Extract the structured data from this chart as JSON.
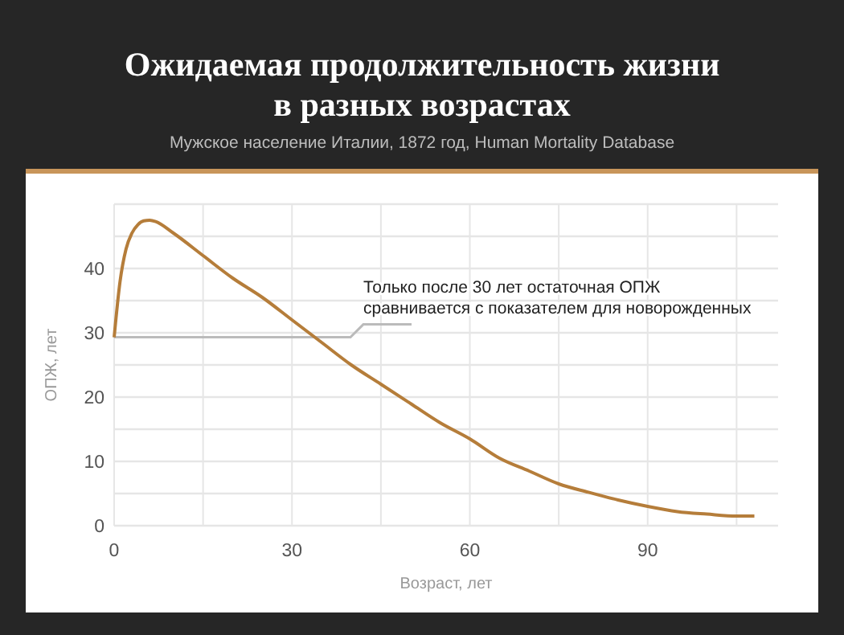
{
  "chart_data": {
    "type": "line",
    "title": "Ожидаемая продолжительность жизни\nв разных возрастах",
    "subtitle": "Мужское население Италии, 1872 год, Human Mortality Database",
    "xlabel": "Возраст, лет",
    "ylabel": "ОПЖ, лет",
    "x": [
      0,
      1,
      2,
      3,
      4,
      5,
      6,
      7,
      10,
      15,
      20,
      25,
      30,
      35,
      40,
      45,
      50,
      55,
      60,
      65,
      70,
      75,
      80,
      85,
      90,
      95,
      100,
      105,
      108
    ],
    "series": [
      {
        "color": "#b57d3a",
        "values": [
          29.3,
          38,
          43,
          45.5,
          46.8,
          47.4,
          47.5,
          47.3,
          45.5,
          42,
          38.5,
          35.5,
          32,
          28.5,
          25,
          22,
          19,
          16,
          13.5,
          10.5,
          8.5,
          6.5,
          5.2,
          4,
          3,
          2.2,
          1.8,
          1.5,
          1.5
        ]
      }
    ],
    "xlim": [
      0,
      112
    ],
    "xticks": [
      0,
      {
        "value": 15,
        "label": null
      },
      30,
      {
        "value": 45,
        "label": null
      },
      60,
      {
        "value": 75,
        "label": null
      },
      90,
      {
        "value": 105,
        "label": null
      }
    ],
    "ylim": [
      0,
      50
    ],
    "yticks": [
      0,
      {
        "value": 5,
        "label": null
      },
      10,
      {
        "value": 15,
        "label": null
      },
      20,
      {
        "value": 25,
        "label": null
      },
      30,
      {
        "value": 35,
        "label": null
      },
      40,
      {
        "value": 45,
        "label": null
      },
      {
        "value": 50,
        "label": null
      }
    ],
    "grid": true,
    "marker": "none",
    "line_style": "solid",
    "ref_lines": [
      {
        "axis": "y",
        "value": 29.3,
        "color": "#bbbbbb",
        "label": "Только после 30 лет остаточная ОПЖ\nсравнивается с показателем для новорожденных"
      }
    ]
  }
}
